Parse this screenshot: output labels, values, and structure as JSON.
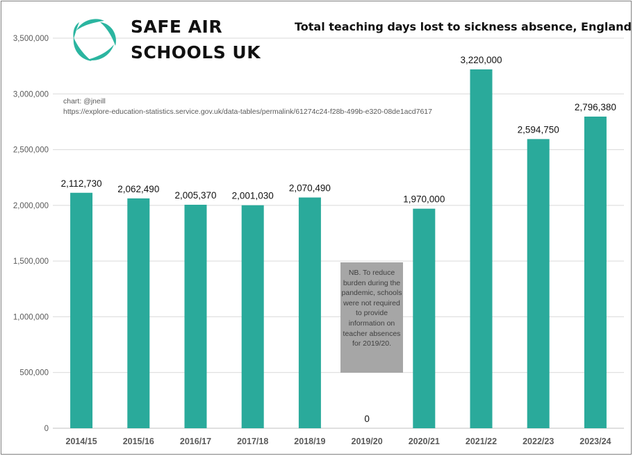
{
  "logo": {
    "line1": "SAFE AIR",
    "line2": "SCHOOLS UK",
    "color": "#2bb5a0"
  },
  "source": {
    "credit": "chart: @jneill",
    "url": "https://explore-education-statistics.service.gov.uk/data-tables/permalink/61274c24-f28b-499b-e320-08de1acd7617"
  },
  "note": "NB. To reduce burden during the pandemic, schools were not required to provide information on teacher absences for 2019/20.",
  "chart_data": {
    "type": "bar",
    "title": "Total teaching days lost to sickness absence, England",
    "xlabel": "",
    "ylabel": "",
    "categories": [
      "2014/15",
      "2015/16",
      "2016/17",
      "2017/18",
      "2018/19",
      "2019/20",
      "2020/21",
      "2021/22",
      "2022/23",
      "2023/24"
    ],
    "values": [
      2112730,
      2062490,
      2005370,
      2001030,
      2070490,
      0,
      1970000,
      3220000,
      2594750,
      2796380
    ],
    "data_labels": [
      "2,112,730",
      "2,062,490",
      "2,005,370",
      "2,001,030",
      "2,070,490",
      "0",
      "1,970,000",
      "3,220,000",
      "2,594,750",
      "2,796,380"
    ],
    "yticks": [
      "0",
      "500,000",
      "1,000,000",
      "1,500,000",
      "2,000,000",
      "2,500,000",
      "3,000,000",
      "3,500,000"
    ],
    "ylim": [
      0,
      3500000
    ],
    "grid": true,
    "bar_color": "#2aaa9b"
  }
}
